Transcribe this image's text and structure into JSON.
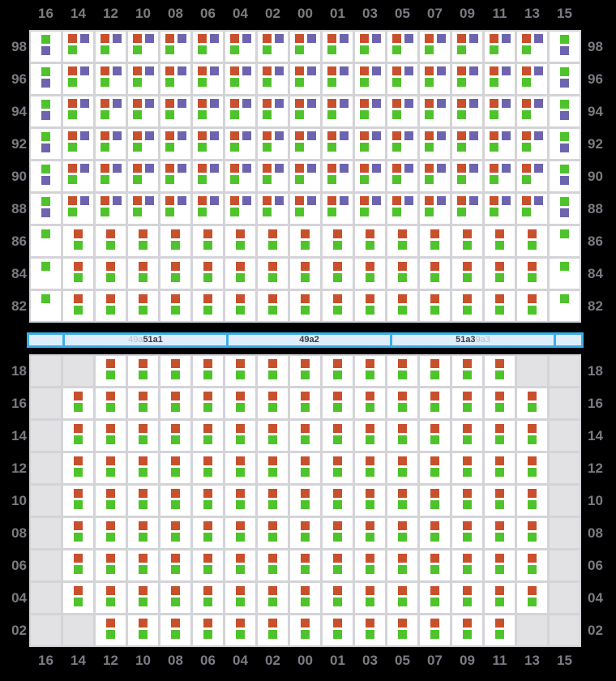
{
  "palette": {
    "red": "#c8502c",
    "green": "#4fc32b",
    "purple": "#6d64b0",
    "empty_cell": "#e2e2e4",
    "grid_line": "#d3d3d8",
    "label_gray": "#7b7b83",
    "bar_blue": "#3cade8",
    "bar_fill": "#ddeefa"
  },
  "columns": [
    "16",
    "14",
    "12",
    "10",
    "08",
    "06",
    "04",
    "02",
    "00",
    "01",
    "03",
    "05",
    "07",
    "09",
    "11",
    "13",
    "15"
  ],
  "cell_types": {
    "gp": [
      {
        "color": "green",
        "slot": "top-center"
      },
      {
        "color": "purple",
        "slot": "bottom-center"
      }
    ],
    "rpg": [
      {
        "color": "red",
        "slot": "top-left"
      },
      {
        "color": "purple",
        "slot": "top-right"
      },
      {
        "color": "green",
        "slot": "bottom-left"
      }
    ],
    "rg": [
      {
        "color": "red",
        "slot": "top-center"
      },
      {
        "color": "green",
        "slot": "bottom-center"
      }
    ],
    "g": [
      {
        "color": "green",
        "slot": "top-center"
      }
    ],
    "x": []
  },
  "top_grid": {
    "row_labels": [
      "98",
      "96",
      "94",
      "92",
      "90",
      "88",
      "86",
      "84",
      "82"
    ],
    "rows": [
      [
        "gp",
        "rpg",
        "rpg",
        "rpg",
        "rpg",
        "rpg",
        "rpg",
        "rpg",
        "rpg",
        "rpg",
        "rpg",
        "rpg",
        "rpg",
        "rpg",
        "rpg",
        "rpg",
        "gp"
      ],
      [
        "gp",
        "rpg",
        "rpg",
        "rpg",
        "rpg",
        "rpg",
        "rpg",
        "rpg",
        "rpg",
        "rpg",
        "rpg",
        "rpg",
        "rpg",
        "rpg",
        "rpg",
        "rpg",
        "gp"
      ],
      [
        "gp",
        "rpg",
        "rpg",
        "rpg",
        "rpg",
        "rpg",
        "rpg",
        "rpg",
        "rpg",
        "rpg",
        "rpg",
        "rpg",
        "rpg",
        "rpg",
        "rpg",
        "rpg",
        "gp"
      ],
      [
        "gp",
        "rpg",
        "rpg",
        "rpg",
        "rpg",
        "rpg",
        "rpg",
        "rpg",
        "rpg",
        "rpg",
        "rpg",
        "rpg",
        "rpg",
        "rpg",
        "rpg",
        "rpg",
        "gp"
      ],
      [
        "gp",
        "rpg",
        "rpg",
        "rpg",
        "rpg",
        "rpg",
        "rpg",
        "rpg",
        "rpg",
        "rpg",
        "rpg",
        "rpg",
        "rpg",
        "rpg",
        "rpg",
        "rpg",
        "gp"
      ],
      [
        "gp",
        "rpg",
        "rpg",
        "rpg",
        "rpg",
        "rpg",
        "rpg",
        "rpg",
        "rpg",
        "rpg",
        "rpg",
        "rpg",
        "rpg",
        "rpg",
        "rpg",
        "rpg",
        "gp"
      ],
      [
        "g",
        "rg",
        "rg",
        "rg",
        "rg",
        "rg",
        "rg",
        "rg",
        "rg",
        "rg",
        "rg",
        "rg",
        "rg",
        "rg",
        "rg",
        "rg",
        "g"
      ],
      [
        "g",
        "rg",
        "rg",
        "rg",
        "rg",
        "rg",
        "rg",
        "rg",
        "rg",
        "rg",
        "rg",
        "rg",
        "rg",
        "rg",
        "rg",
        "rg",
        "g"
      ],
      [
        "g",
        "rg",
        "rg",
        "rg",
        "rg",
        "rg",
        "rg",
        "rg",
        "rg",
        "rg",
        "rg",
        "rg",
        "rg",
        "rg",
        "rg",
        "rg",
        "g"
      ]
    ]
  },
  "bottom_grid": {
    "row_labels": [
      "18",
      "16",
      "14",
      "12",
      "10",
      "08",
      "06",
      "04",
      "02"
    ],
    "rows": [
      [
        "x",
        "x",
        "rg",
        "rg",
        "rg",
        "rg",
        "rg",
        "rg",
        "rg",
        "rg",
        "rg",
        "rg",
        "rg",
        "rg",
        "rg",
        "x",
        "x"
      ],
      [
        "x",
        "rg",
        "rg",
        "rg",
        "rg",
        "rg",
        "rg",
        "rg",
        "rg",
        "rg",
        "rg",
        "rg",
        "rg",
        "rg",
        "rg",
        "rg",
        "x"
      ],
      [
        "x",
        "rg",
        "rg",
        "rg",
        "rg",
        "rg",
        "rg",
        "rg",
        "rg",
        "rg",
        "rg",
        "rg",
        "rg",
        "rg",
        "rg",
        "rg",
        "x"
      ],
      [
        "x",
        "rg",
        "rg",
        "rg",
        "rg",
        "rg",
        "rg",
        "rg",
        "rg",
        "rg",
        "rg",
        "rg",
        "rg",
        "rg",
        "rg",
        "rg",
        "x"
      ],
      [
        "x",
        "rg",
        "rg",
        "rg",
        "rg",
        "rg",
        "rg",
        "rg",
        "rg",
        "rg",
        "rg",
        "rg",
        "rg",
        "rg",
        "rg",
        "rg",
        "x"
      ],
      [
        "x",
        "rg",
        "rg",
        "rg",
        "rg",
        "rg",
        "rg",
        "rg",
        "rg",
        "rg",
        "rg",
        "rg",
        "rg",
        "rg",
        "rg",
        "rg",
        "x"
      ],
      [
        "x",
        "rg",
        "rg",
        "rg",
        "rg",
        "rg",
        "rg",
        "rg",
        "rg",
        "rg",
        "rg",
        "rg",
        "rg",
        "rg",
        "rg",
        "rg",
        "x"
      ],
      [
        "x",
        "rg",
        "rg",
        "rg",
        "rg",
        "rg",
        "rg",
        "rg",
        "rg",
        "rg",
        "rg",
        "rg",
        "rg",
        "rg",
        "rg",
        "rg",
        "x"
      ],
      [
        "x",
        "x",
        "rg",
        "rg",
        "rg",
        "rg",
        "rg",
        "rg",
        "rg",
        "rg",
        "rg",
        "rg",
        "rg",
        "rg",
        "rg",
        "x",
        "x"
      ]
    ]
  },
  "scrollbar": {
    "segments": [
      {
        "parts": []
      },
      {
        "parts": [
          {
            "text": "49a",
            "tone": "light"
          },
          {
            "text": "51a1",
            "tone": "dark"
          }
        ]
      },
      {
        "parts": [
          {
            "text": "49a2",
            "tone": "dark"
          }
        ]
      },
      {
        "parts": [
          {
            "text": "51a3",
            "tone": "dark"
          },
          {
            "text": "9a3",
            "tone": "light"
          }
        ]
      },
      {
        "parts": []
      }
    ]
  }
}
